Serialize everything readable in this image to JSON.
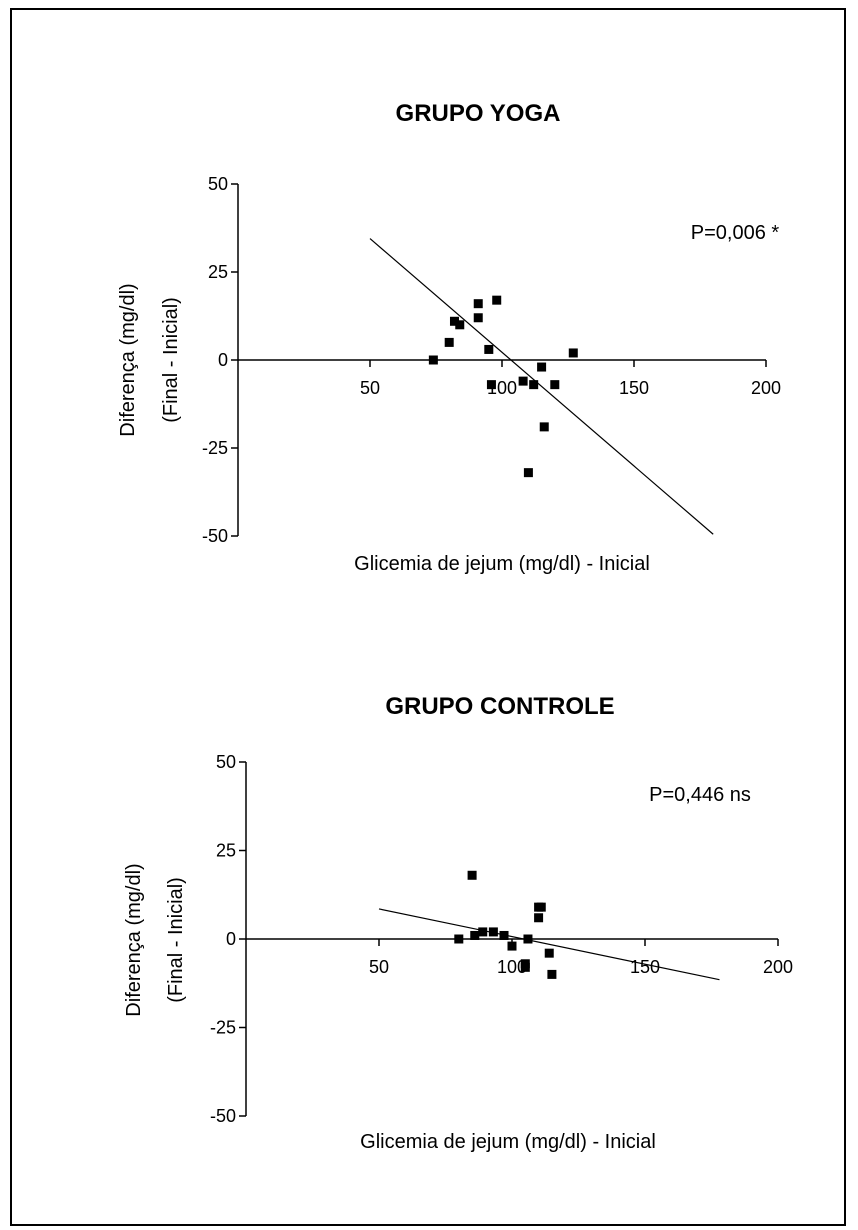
{
  "chart_data": [
    {
      "type": "scatter",
      "title": "GRUPO YOGA",
      "xlabel": "Glicemia de jejum (mg/dl) - Inicial",
      "ylabel_lines": [
        "Diferença (mg/dl)",
        "(Final - Inicial)"
      ],
      "annotation": "P=0,006 *",
      "xlim": [
        0,
        200
      ],
      "ylim": [
        -50,
        50
      ],
      "x_ticks": [
        50,
        100,
        150,
        200
      ],
      "y_ticks": [
        50,
        25,
        0,
        -25,
        -50
      ],
      "x_tick_labels": [
        "50",
        "100",
        "150",
        "200"
      ],
      "y_tick_labels": [
        "50",
        "25",
        "0",
        "-25",
        "-50"
      ],
      "points": [
        {
          "x": 74,
          "y": 0
        },
        {
          "x": 80,
          "y": 5
        },
        {
          "x": 82,
          "y": 11
        },
        {
          "x": 84,
          "y": 10
        },
        {
          "x": 91,
          "y": 12
        },
        {
          "x": 91,
          "y": 16
        },
        {
          "x": 95,
          "y": 3
        },
        {
          "x": 96,
          "y": -7
        },
        {
          "x": 98,
          "y": 17
        },
        {
          "x": 108,
          "y": -6
        },
        {
          "x": 110,
          "y": -32
        },
        {
          "x": 112,
          "y": -7
        },
        {
          "x": 115,
          "y": -2
        },
        {
          "x": 116,
          "y": -19
        },
        {
          "x": 120,
          "y": -7
        },
        {
          "x": 127,
          "y": 2
        }
      ],
      "fit_line": {
        "x": [
          50,
          180
        ],
        "y": [
          34.5,
          -49.5
        ]
      },
      "grid": false
    },
    {
      "type": "scatter",
      "title": "GRUPO CONTROLE",
      "xlabel": "Glicemia de jejum (mg/dl) - Inicial",
      "ylabel_lines": [
        "Diferença (mg/dl)",
        "(Final - Inicial)"
      ],
      "annotation": "P=0,446 ns",
      "xlim": [
        0,
        200
      ],
      "ylim": [
        -50,
        50
      ],
      "x_ticks": [
        50,
        100,
        150,
        200
      ],
      "y_ticks": [
        50,
        25,
        0,
        -25,
        -50
      ],
      "x_tick_labels": [
        "50",
        "100",
        "150",
        "200"
      ],
      "y_tick_labels": [
        "50",
        "25",
        "0",
        "-25",
        "-50"
      ],
      "points": [
        {
          "x": 80,
          "y": 0
        },
        {
          "x": 85,
          "y": 18
        },
        {
          "x": 86,
          "y": 1
        },
        {
          "x": 89,
          "y": 2
        },
        {
          "x": 93,
          "y": 2
        },
        {
          "x": 97,
          "y": 1
        },
        {
          "x": 100,
          "y": -2
        },
        {
          "x": 105,
          "y": -7
        },
        {
          "x": 105,
          "y": -8
        },
        {
          "x": 106,
          "y": 0
        },
        {
          "x": 110,
          "y": 9
        },
        {
          "x": 111,
          "y": 9
        },
        {
          "x": 110,
          "y": 6
        },
        {
          "x": 114,
          "y": -4
        },
        {
          "x": 115,
          "y": -10
        }
      ],
      "fit_line": {
        "x": [
          50,
          178
        ],
        "y": [
          8.5,
          -11.5
        ]
      },
      "grid": false
    }
  ]
}
